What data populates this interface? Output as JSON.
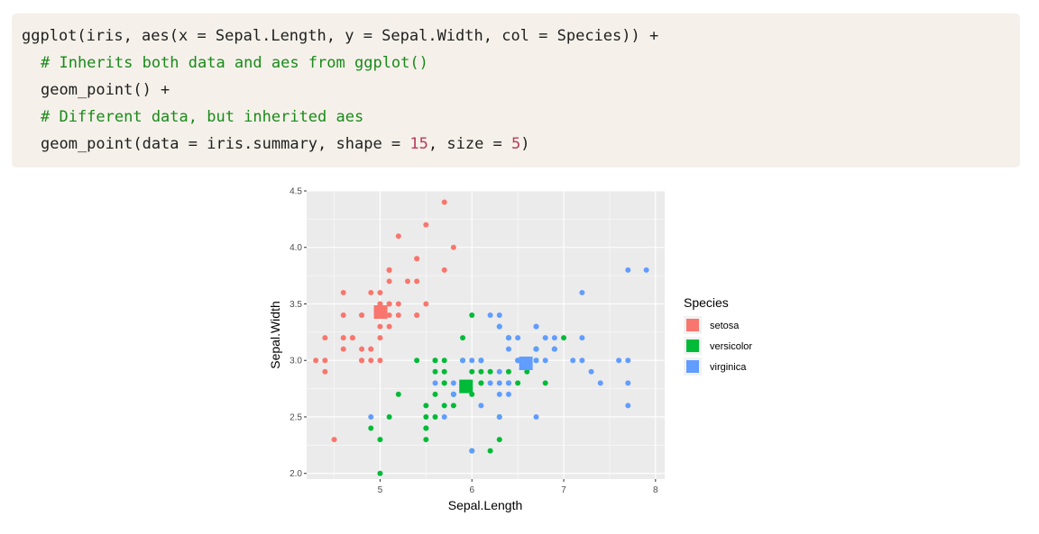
{
  "code": {
    "line1": "ggplot(iris, aes(x = Sepal.Length, y = Sepal.Width, col = Species)) +",
    "line2": "# Inherits both data and aes from ggplot()",
    "line3": "geom_point() +",
    "line4": "# Different data, but inherited aes",
    "line5_pre": "geom_point(data = iris.summary, shape = ",
    "line5_num1": "15",
    "line5_mid": ", size = ",
    "line5_num2": "5",
    "line5_post": ")"
  },
  "chart_data": {
    "type": "scatter",
    "xlabel": "Sepal.Length",
    "ylabel": "Sepal.Width",
    "xlim": [
      4.2,
      8.1
    ],
    "ylim": [
      1.95,
      4.5
    ],
    "xticks": [
      "5",
      "6",
      "7",
      "8"
    ],
    "yticks": [
      "2.0",
      "2.5",
      "3.0",
      "3.5",
      "4.0",
      "4.5"
    ],
    "grid": true,
    "legend": {
      "title": "Species",
      "position": "right"
    },
    "series": [
      {
        "name": "setosa",
        "color": "#F8766D",
        "points": [
          [
            5.1,
            3.5
          ],
          [
            4.9,
            3.0
          ],
          [
            4.7,
            3.2
          ],
          [
            4.6,
            3.1
          ],
          [
            5.0,
            3.6
          ],
          [
            5.4,
            3.9
          ],
          [
            4.6,
            3.4
          ],
          [
            5.0,
            3.4
          ],
          [
            4.4,
            2.9
          ],
          [
            4.9,
            3.1
          ],
          [
            5.4,
            3.7
          ],
          [
            4.8,
            3.4
          ],
          [
            4.8,
            3.0
          ],
          [
            4.3,
            3.0
          ],
          [
            5.8,
            4.0
          ],
          [
            5.7,
            4.4
          ],
          [
            5.4,
            3.9
          ],
          [
            5.1,
            3.5
          ],
          [
            5.7,
            3.8
          ],
          [
            5.1,
            3.8
          ],
          [
            5.4,
            3.4
          ],
          [
            5.1,
            3.7
          ],
          [
            4.6,
            3.6
          ],
          [
            5.1,
            3.3
          ],
          [
            4.8,
            3.4
          ],
          [
            5.0,
            3.0
          ],
          [
            5.0,
            3.4
          ],
          [
            5.2,
            3.5
          ],
          [
            5.2,
            3.4
          ],
          [
            4.7,
            3.2
          ],
          [
            4.8,
            3.1
          ],
          [
            5.4,
            3.4
          ],
          [
            5.2,
            4.1
          ],
          [
            5.5,
            4.2
          ],
          [
            4.9,
            3.1
          ],
          [
            5.0,
            3.2
          ],
          [
            5.5,
            3.5
          ],
          [
            4.9,
            3.6
          ],
          [
            4.4,
            3.0
          ],
          [
            5.1,
            3.4
          ],
          [
            5.0,
            3.5
          ],
          [
            4.5,
            2.3
          ],
          [
            4.4,
            3.2
          ],
          [
            5.0,
            3.5
          ],
          [
            5.1,
            3.8
          ],
          [
            4.8,
            3.0
          ],
          [
            5.1,
            3.8
          ],
          [
            4.6,
            3.2
          ],
          [
            5.3,
            3.7
          ],
          [
            5.0,
            3.3
          ]
        ],
        "mean": [
          5.006,
          3.428
        ]
      },
      {
        "name": "versicolor",
        "color": "#00BA38",
        "points": [
          [
            7.0,
            3.2
          ],
          [
            6.4,
            3.2
          ],
          [
            6.9,
            3.1
          ],
          [
            5.5,
            2.3
          ],
          [
            6.5,
            2.8
          ],
          [
            5.7,
            2.8
          ],
          [
            6.3,
            3.3
          ],
          [
            4.9,
            2.4
          ],
          [
            6.6,
            2.9
          ],
          [
            5.2,
            2.7
          ],
          [
            5.0,
            2.0
          ],
          [
            5.9,
            3.0
          ],
          [
            6.0,
            2.2
          ],
          [
            6.1,
            2.9
          ],
          [
            5.6,
            2.9
          ],
          [
            6.7,
            3.1
          ],
          [
            5.6,
            3.0
          ],
          [
            5.8,
            2.7
          ],
          [
            6.2,
            2.2
          ],
          [
            5.6,
            2.5
          ],
          [
            5.9,
            3.2
          ],
          [
            6.1,
            2.8
          ],
          [
            6.3,
            2.5
          ],
          [
            6.1,
            2.8
          ],
          [
            6.4,
            2.9
          ],
          [
            6.6,
            3.0
          ],
          [
            6.8,
            2.8
          ],
          [
            6.7,
            3.0
          ],
          [
            6.0,
            2.9
          ],
          [
            5.7,
            2.6
          ],
          [
            5.5,
            2.4
          ],
          [
            5.5,
            2.4
          ],
          [
            5.8,
            2.7
          ],
          [
            6.0,
            2.7
          ],
          [
            5.4,
            3.0
          ],
          [
            6.0,
            3.4
          ],
          [
            6.7,
            3.1
          ],
          [
            6.3,
            2.3
          ],
          [
            5.6,
            3.0
          ],
          [
            5.5,
            2.5
          ],
          [
            5.5,
            2.6
          ],
          [
            6.1,
            3.0
          ],
          [
            5.8,
            2.6
          ],
          [
            5.0,
            2.3
          ],
          [
            5.6,
            2.7
          ],
          [
            5.7,
            3.0
          ],
          [
            5.7,
            2.9
          ],
          [
            6.2,
            2.9
          ],
          [
            5.1,
            2.5
          ],
          [
            5.7,
            2.8
          ]
        ],
        "mean": [
          5.936,
          2.77
        ]
      },
      {
        "name": "virginica",
        "color": "#619CFF",
        "points": [
          [
            6.3,
            3.3
          ],
          [
            5.8,
            2.7
          ],
          [
            7.1,
            3.0
          ],
          [
            6.3,
            2.9
          ],
          [
            6.5,
            3.0
          ],
          [
            7.6,
            3.0
          ],
          [
            4.9,
            2.5
          ],
          [
            7.3,
            2.9
          ],
          [
            6.7,
            2.5
          ],
          [
            7.2,
            3.6
          ],
          [
            6.5,
            3.2
          ],
          [
            6.4,
            2.7
          ],
          [
            6.8,
            3.0
          ],
          [
            5.7,
            2.5
          ],
          [
            5.8,
            2.8
          ],
          [
            6.4,
            3.2
          ],
          [
            6.5,
            3.0
          ],
          [
            7.7,
            3.8
          ],
          [
            7.7,
            2.6
          ],
          [
            6.0,
            2.2
          ],
          [
            6.9,
            3.2
          ],
          [
            5.6,
            2.8
          ],
          [
            7.7,
            2.8
          ],
          [
            6.3,
            2.7
          ],
          [
            6.7,
            3.3
          ],
          [
            7.2,
            3.2
          ],
          [
            6.2,
            2.8
          ],
          [
            6.1,
            3.0
          ],
          [
            6.4,
            2.8
          ],
          [
            7.2,
            3.0
          ],
          [
            7.4,
            2.8
          ],
          [
            7.9,
            3.8
          ],
          [
            6.4,
            2.8
          ],
          [
            6.3,
            2.8
          ],
          [
            6.1,
            2.6
          ],
          [
            7.7,
            3.0
          ],
          [
            6.3,
            3.4
          ],
          [
            6.4,
            3.1
          ],
          [
            6.0,
            3.0
          ],
          [
            6.9,
            3.1
          ],
          [
            6.7,
            3.1
          ],
          [
            6.9,
            3.1
          ],
          [
            5.8,
            2.7
          ],
          [
            6.8,
            3.2
          ],
          [
            6.7,
            3.3
          ],
          [
            6.7,
            3.0
          ],
          [
            6.3,
            2.5
          ],
          [
            6.5,
            3.0
          ],
          [
            6.2,
            3.4
          ],
          [
            5.9,
            3.0
          ]
        ],
        "mean": [
          6.588,
          2.974
        ]
      }
    ]
  }
}
